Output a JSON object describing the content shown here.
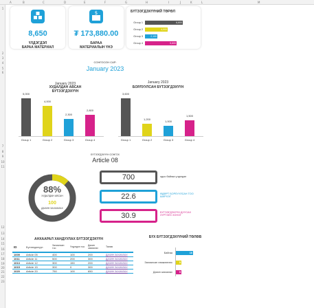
{
  "column_headers": [
    "A",
    "B",
    "C",
    "D",
    "E",
    "F",
    "G",
    "H",
    "I",
    "J",
    "K",
    "L",
    "M"
  ],
  "row_headers": [
    "1",
    "2",
    "3",
    "4",
    "5",
    "6",
    "7",
    "8",
    "9",
    "10",
    "11",
    "12",
    "13",
    "14",
    "15",
    "16",
    "17",
    "18",
    "19",
    "20",
    "21",
    "22",
    "23"
  ],
  "kpi": {
    "stock_value": "8,650",
    "stock_label_1": "ҮЛДЭГДЭЛ",
    "stock_label_2": "БАРАА МАТЕРИАЛ",
    "cost_value": "₮ 173,880.00",
    "cost_label_1": "БАРАА",
    "cost_label_2": "МАТЕРИАЛЫН ҮНЭ"
  },
  "product_types": {
    "title": "БҮТЭЭГДЭХҮҮНИЙ ТӨРӨЛ",
    "items": [
      {
        "label": "Group 1",
        "value": "6,600",
        "fill": 0.78,
        "color": "#555555"
      },
      {
        "label": "Group 2",
        "value": "4,000",
        "fill": 0.47,
        "color": "#e0d41a"
      },
      {
        "label": "Group 3",
        "value": "2,100",
        "fill": 0.25,
        "color": "#1fa1d8"
      },
      {
        "label": "Group 4",
        "value": "5,600",
        "fill": 0.66,
        "color": "#d6228a"
      }
    ]
  },
  "month_select": {
    "label": "СОНГОСОН САР:",
    "value": "January 2023"
  },
  "purchased": {
    "period": "January 2023",
    "title_1": "ХУДАЛДАН АВСАН",
    "title_2": "БҮТЭЭГДЭХҮҮН"
  },
  "sold": {
    "period": "January 2023",
    "title": "БОРЛУУЛСАН БҮТЭЭГДЭХҮҮН"
  },
  "chart_data": [
    {
      "type": "bar",
      "title": "ХУДАЛДАН АВСАН БҮТЭЭГДЭХҮҮН",
      "categories": [
        "Group 1",
        "Group 2",
        "Group 3",
        "Group 4"
      ],
      "values": [
        5000,
        4000,
        2300,
        2800
      ],
      "labels": [
        "5,000",
        "4,000",
        "2,300",
        "2,800"
      ],
      "colors": [
        "#555555",
        "#e0d41a",
        "#1fa1d8",
        "#d6228a"
      ],
      "ylim": [
        0,
        5000
      ]
    },
    {
      "type": "bar",
      "title": "БОРЛУУЛСАН БҮТЭЭГДЭХҮҮН",
      "categories": [
        "Group 1",
        "Group 2",
        "Group 3",
        "Group 4"
      ],
      "values": [
        3600,
        1200,
        1000,
        1500
      ],
      "labels": [
        "3,600",
        "1,200",
        "1,000",
        "1,500"
      ],
      "colors": [
        "#555555",
        "#e0d41a",
        "#1fa1d8",
        "#d6228a"
      ],
      "ylim": [
        0,
        3600
      ]
    }
  ],
  "product_select": {
    "label": "БҮТЭЭГДЭХҮҮН СОНГОХ",
    "value": "Article 08"
  },
  "donut": {
    "percent": "88%",
    "percent_fraction": 0.88,
    "percent_label": "ХУДАЛДАН АВСАН",
    "count": "100",
    "count_label": "ДАХИН ЗАХИАЛАХ"
  },
  "stats": [
    {
      "value": "700",
      "label": "одоо байгаа үлдэгдэл",
      "color": "#555555"
    },
    {
      "value": "22.6",
      "label": "ӨДӨРТ БОРЛУУЛСАН ТОО ШИРХЭГ",
      "color": "#1fa1d8"
    },
    {
      "value": "30.9",
      "label": "БҮТЭЭГДЭХҮҮН ДУУСАХ ХҮРТЭЛХ ХОНОГ",
      "color": "#d6228a"
    }
  ],
  "inventory": {
    "title": "АНХААРАЛ ХАНДУУЛАХ БҮТЭЭГДЭХҮҮН",
    "headers": [
      "ID",
      "Бүтээгдэхүүн",
      "Захиалсан тоо",
      "Үлдэгдэл тоо",
      "Дахин захиалах",
      "Төлөв"
    ],
    "rows": [
      [
        "1009",
        "Article 05",
        "400",
        "100",
        "200",
        "ДАХИН ЗАХИАЛАХ"
      ],
      [
        "1011",
        "Article 11",
        "500",
        "200",
        "300",
        "ДАХИН ЗАХИАЛАХ"
      ],
      [
        "1013",
        "Article 12",
        "300",
        "150",
        "200",
        "ДАХИН ЗАХИАЛАХ"
      ],
      [
        "1015",
        "Article 15",
        "300",
        "0",
        "300",
        "ДАХИН ЗАХИАЛАХ"
      ],
      [
        "1020",
        "Article 20",
        "750",
        "100",
        "650",
        "ДАХИН ЗАХИАЛАХ"
      ]
    ]
  },
  "status": {
    "title": "БҮХ БҮТЭЭГДЭХҮҮНИЙ ТӨЛӨВ",
    "items": [
      {
        "label": "Байгаа",
        "value": "16",
        "fill": 1.0,
        "color": "#1fa1d8"
      },
      {
        "label": "Захиалсан хэмжээнээс",
        "value": "5",
        "fill": 0.32,
        "color": "#e0d41a"
      },
      {
        "label": "Дахин захиалах",
        "value": "5",
        "fill": 0.32,
        "color": "#d6228a"
      }
    ]
  }
}
